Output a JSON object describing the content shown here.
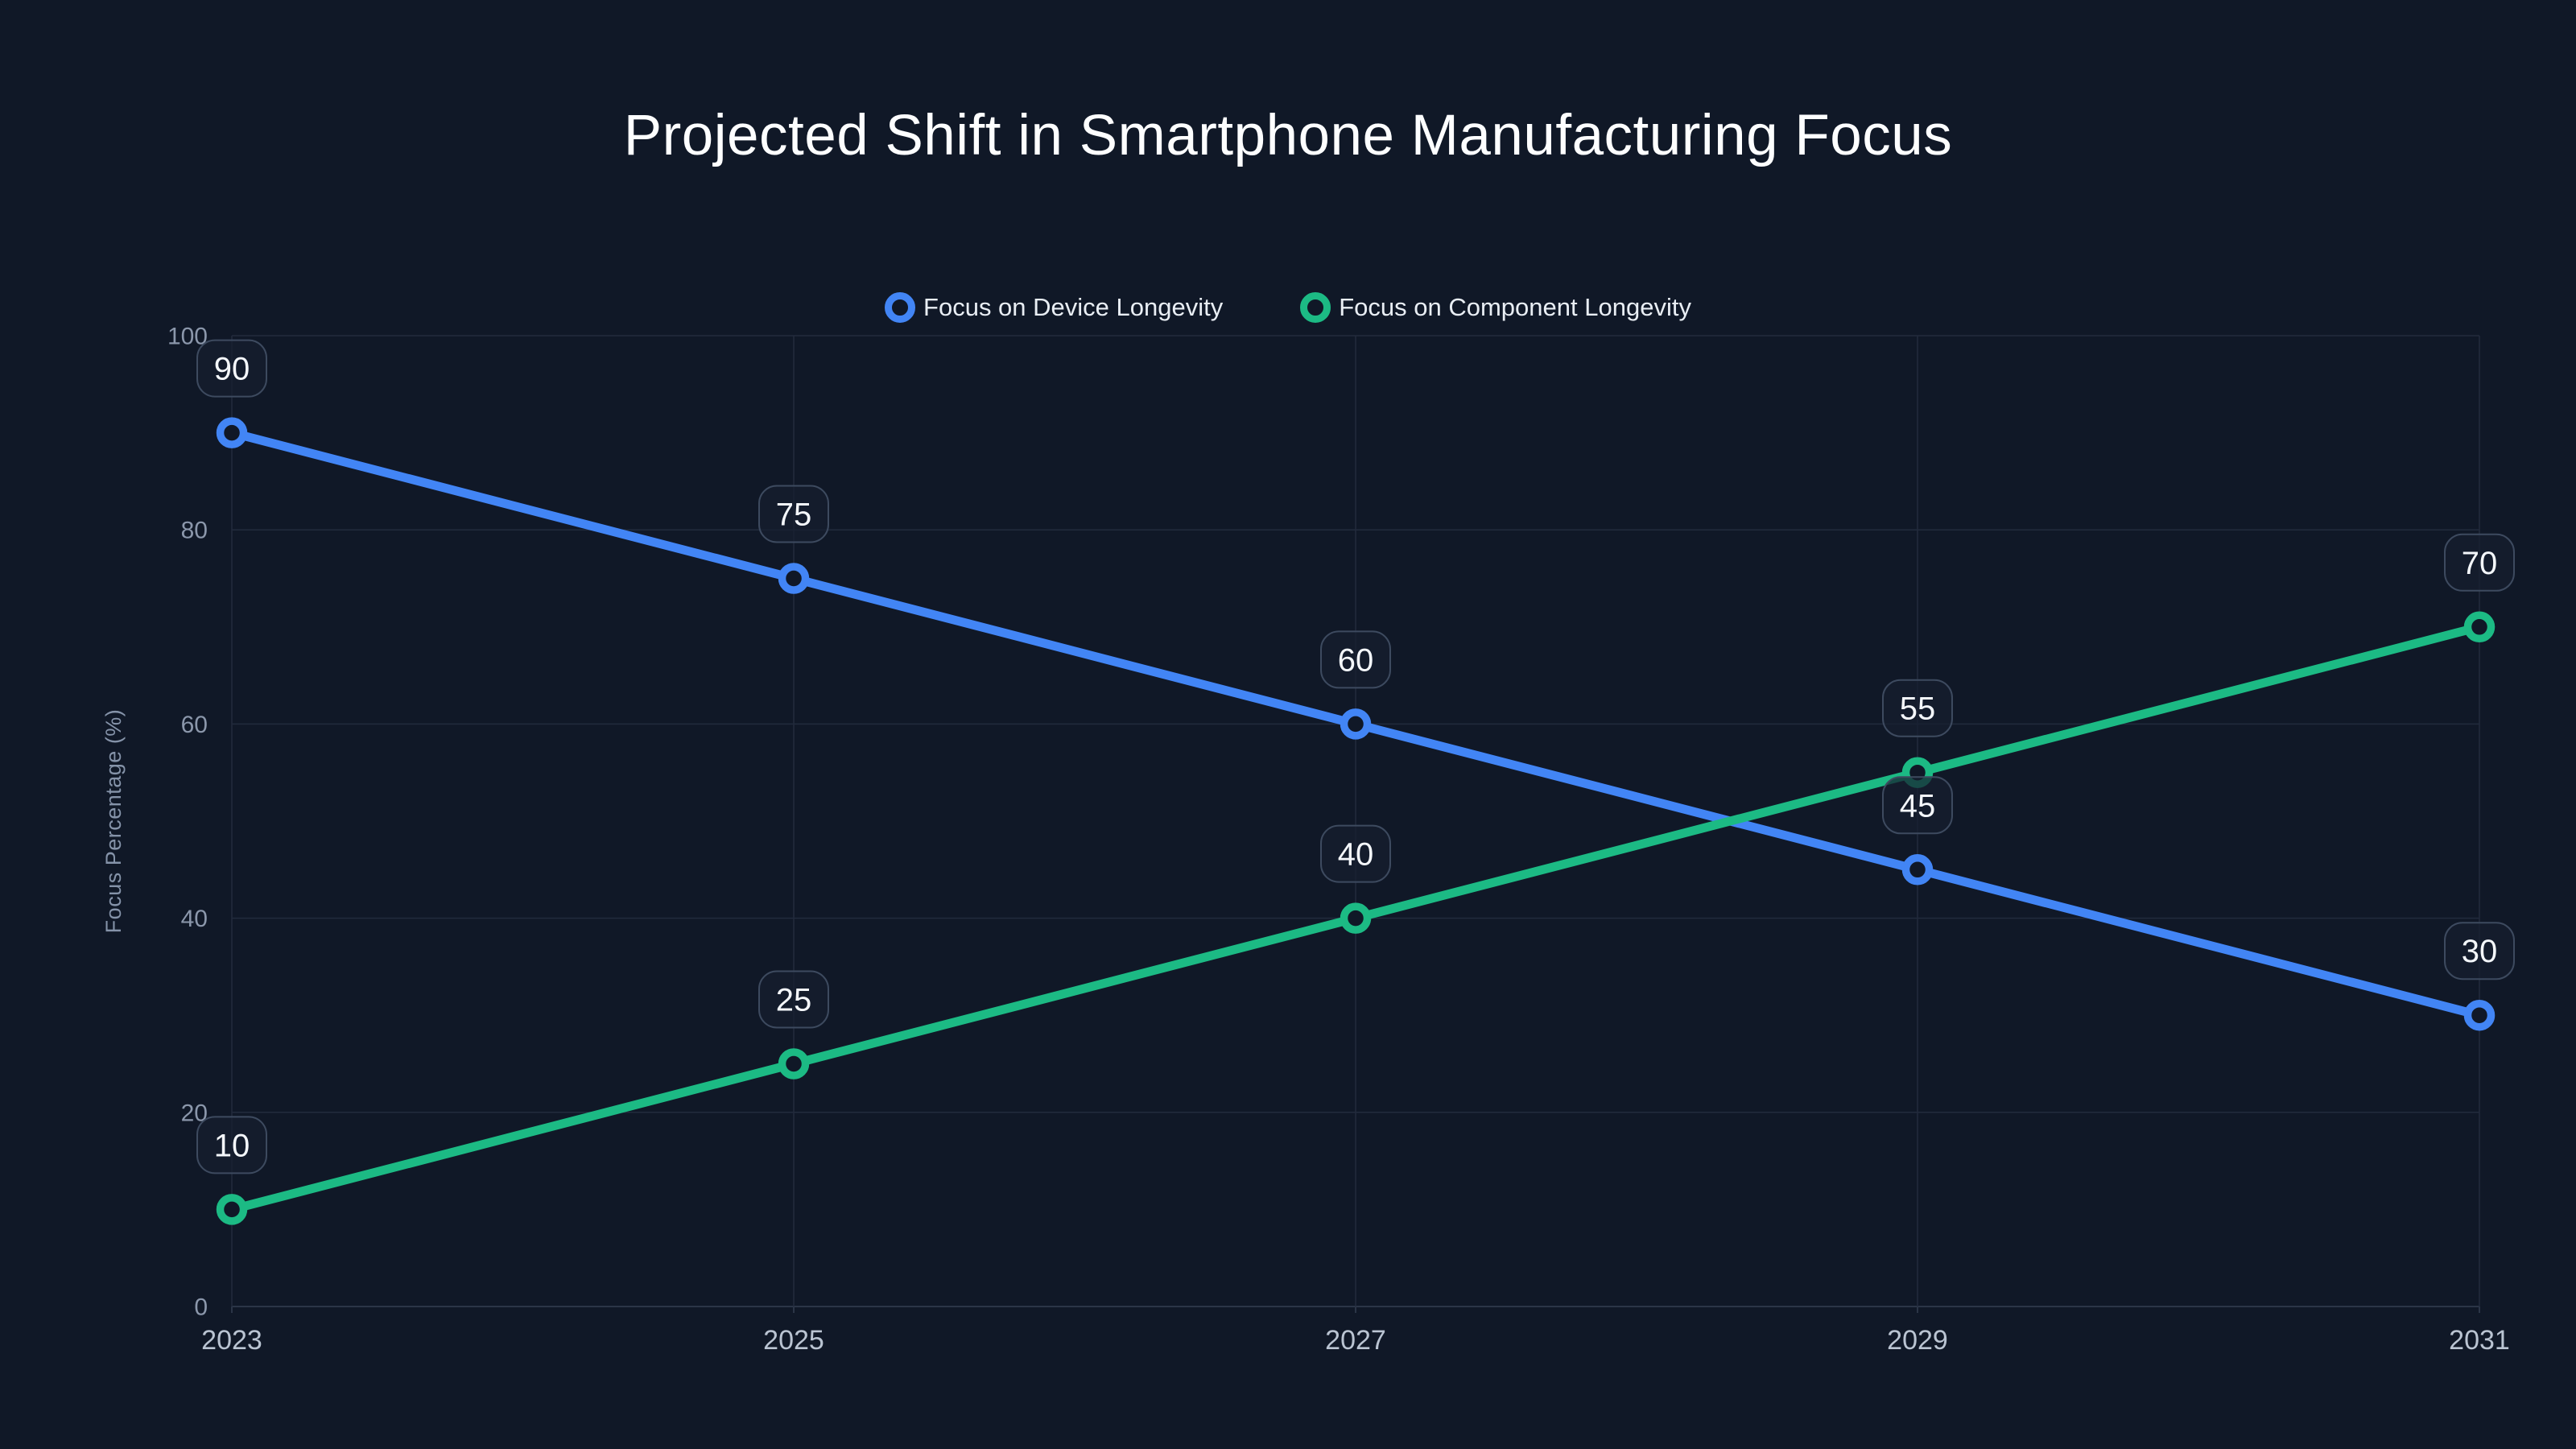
{
  "colors": {
    "background": "#101827",
    "grid": "#222b3d",
    "axis_line": "#2b3547",
    "label_box_border": "#3d4a5f",
    "label_box_fill": "rgba(22,30,47,0.72)"
  },
  "chart_data": {
    "type": "line",
    "title": "Projected Shift in Smartphone Manufacturing Focus",
    "x_axis": {
      "ticks": [
        "2023",
        "2025",
        "2027",
        "2029",
        "2031"
      ]
    },
    "y_axis": {
      "label": "Focus Percentage (%)",
      "ticks": [
        0,
        20,
        40,
        60,
        80,
        100
      ],
      "range": [
        0,
        100
      ]
    },
    "grid": true,
    "legend_position": "top-center",
    "point_labels_visible": true,
    "series": [
      {
        "name": "Focus on Device Longevity",
        "color": "#4285f5",
        "values": [
          90,
          75,
          60,
          45,
          30
        ]
      },
      {
        "name": "Focus on Component Longevity",
        "color": "#1cba84",
        "values": [
          10,
          25,
          40,
          55,
          70
        ]
      }
    ]
  }
}
